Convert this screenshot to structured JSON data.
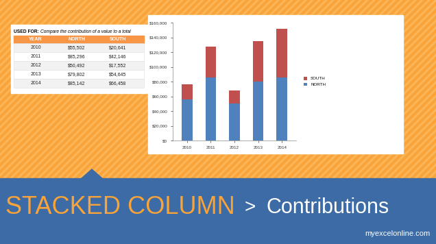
{
  "chart_data": {
    "type": "bar",
    "stacked": true,
    "grid": false,
    "legend": "right",
    "categories": [
      "2010",
      "2011",
      "2012",
      "2013",
      "2014"
    ],
    "series": [
      {
        "name": "NORTH",
        "color": "#4F81BD",
        "values": [
          55502,
          85296,
          50492,
          79802,
          85142
        ]
      },
      {
        "name": "SOUTH",
        "color": "#C0504D",
        "values": [
          20641,
          42146,
          17552,
          54645,
          66458
        ]
      }
    ],
    "ylim": [
      0,
      160000
    ],
    "yticks": [
      {
        "value": 0,
        "label": "$0"
      },
      {
        "value": 20000,
        "label": "$20,000"
      },
      {
        "value": 40000,
        "label": "$40,000"
      },
      {
        "value": 60000,
        "label": "$60,000"
      },
      {
        "value": 80000,
        "label": "$80,000"
      },
      {
        "value": 100000,
        "label": "$100,000"
      },
      {
        "value": 120000,
        "label": "$120,000"
      },
      {
        "value": 140000,
        "label": "$140,000"
      },
      {
        "value": 160000,
        "label": "$160,000"
      }
    ]
  },
  "table": {
    "caption_label": "USED FOR:",
    "caption": "Compare the contribution of a value to a total",
    "header": [
      "YEAR",
      "NORTH",
      "SOUTH"
    ],
    "rows": [
      [
        "2010",
        "$55,502",
        "$20,641"
      ],
      [
        "2011",
        "$85,296",
        "$42,146"
      ],
      [
        "2012",
        "$50,492",
        "$17,552"
      ],
      [
        "2013",
        "$79,802",
        "$54,645"
      ],
      [
        "2014",
        "$85,142",
        "$66,458"
      ]
    ]
  },
  "banner": {
    "title": "STACKED COLUMN",
    "separator": ">",
    "subtitle": "Contributions",
    "logo": "myexcelonline.com"
  }
}
